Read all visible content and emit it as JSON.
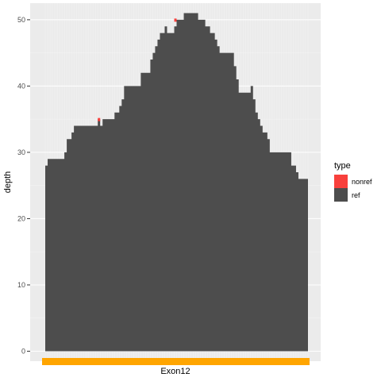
{
  "chart_data": {
    "type": "area",
    "ylabel": "depth",
    "xlabel": "",
    "ylim": [
      -1.5,
      52.5
    ],
    "yticks": [
      0,
      10,
      20,
      30,
      40,
      50
    ],
    "grid": true,
    "legend": {
      "position": "right",
      "title": "type",
      "entries": [
        {
          "name": "nonref",
          "color": "#f8403c"
        },
        {
          "name": "ref",
          "color": "#4d4d4d"
        }
      ]
    },
    "colors": {
      "panel": "#ebebeb",
      "grid_major": "#ffffff",
      "grid_minor": "#f3f3f3",
      "ref": "#4d4d4d",
      "nonref": "#f8403c",
      "exon": "#ffa500"
    },
    "exon": {
      "label": "Exon12"
    },
    "series": [
      {
        "name": "ref",
        "x": [
          0,
          1,
          2,
          3,
          4,
          5,
          6,
          7,
          8,
          9,
          10,
          11,
          12,
          13,
          14,
          15,
          16,
          17,
          18,
          19,
          20,
          21,
          22,
          23,
          24,
          25,
          26,
          27,
          28,
          29,
          30,
          31,
          32,
          33,
          34,
          35,
          36,
          37,
          38,
          39,
          40,
          41,
          42,
          43,
          44,
          45,
          46,
          47,
          48,
          49,
          50,
          51,
          52,
          53,
          54,
          55,
          56,
          57,
          58,
          59,
          60,
          61,
          62,
          63,
          64,
          65,
          66,
          67,
          68,
          69,
          70,
          71,
          72,
          73,
          74,
          75,
          76,
          77,
          78,
          79,
          80,
          81,
          82,
          83,
          84,
          85,
          86,
          87,
          88,
          89,
          90,
          91,
          92,
          93,
          94,
          95,
          96,
          97,
          98,
          99,
          100,
          101,
          102,
          103,
          104,
          105,
          106,
          107,
          108,
          109
        ],
        "values": [
          28,
          29,
          29,
          29,
          29,
          29,
          29,
          29,
          30,
          32,
          32,
          33,
          34,
          34,
          34,
          34,
          34,
          34,
          34,
          34,
          34,
          34,
          35,
          34,
          35,
          35,
          35,
          35,
          35,
          36,
          36,
          37,
          38,
          40,
          40,
          40,
          40,
          40,
          40,
          40,
          42,
          42,
          42,
          42,
          44,
          45,
          46,
          47,
          48,
          48,
          49,
          48,
          48,
          48,
          49,
          50,
          50,
          50,
          51,
          51,
          51,
          51,
          51,
          51,
          50,
          50,
          50,
          49,
          49,
          48,
          48,
          47,
          46,
          45,
          45,
          45,
          45,
          45,
          45,
          43,
          41,
          39,
          39,
          39,
          39,
          39,
          40,
          38,
          36,
          35,
          34,
          33,
          33,
          32,
          30,
          30,
          30,
          30,
          30,
          30,
          30,
          30,
          30,
          28,
          28,
          27,
          26,
          26,
          26,
          26
        ]
      },
      {
        "name": "nonref",
        "points": [
          {
            "x": 22,
            "y": 35
          },
          {
            "x": 54,
            "y": 50
          }
        ]
      }
    ]
  }
}
